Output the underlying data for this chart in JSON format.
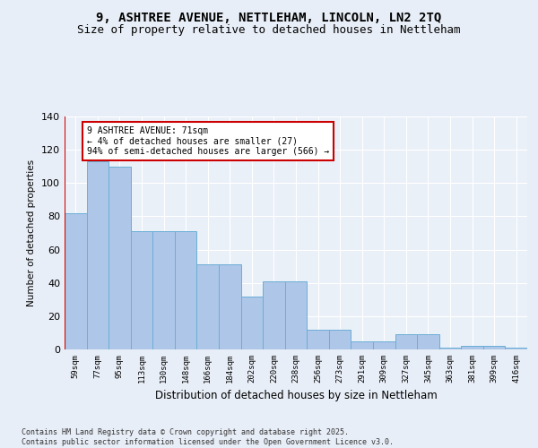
{
  "title1": "9, ASHTREE AVENUE, NETTLEHAM, LINCOLN, LN2 2TQ",
  "title2": "Size of property relative to detached houses in Nettleham",
  "xlabel": "Distribution of detached houses by size in Nettleham",
  "ylabel": "Number of detached properties",
  "categories": [
    "59sqm",
    "77sqm",
    "95sqm",
    "113sqm",
    "130sqm",
    "148sqm",
    "166sqm",
    "184sqm",
    "202sqm",
    "220sqm",
    "238sqm",
    "256sqm",
    "273sqm",
    "291sqm",
    "309sqm",
    "327sqm",
    "345sqm",
    "363sqm",
    "381sqm",
    "399sqm",
    "416sqm"
  ],
  "values": [
    82,
    113,
    110,
    71,
    71,
    71,
    51,
    51,
    32,
    41,
    41,
    12,
    12,
    5,
    5,
    9,
    9,
    1,
    2,
    2,
    1
  ],
  "bar_color": "#aec6e8",
  "bar_edge_color": "#6baed6",
  "annotation_text": "9 ASHTREE AVENUE: 71sqm\n← 4% of detached houses are smaller (27)\n94% of semi-detached houses are larger (566) →",
  "vline_color": "#cc0000",
  "vline_x_index": 0,
  "background_color": "#e8eef7",
  "plot_bg_color": "#eaf0f8",
  "grid_color": "#ffffff",
  "footer": "Contains HM Land Registry data © Crown copyright and database right 2025.\nContains public sector information licensed under the Open Government Licence v3.0.",
  "ylim": [
    0,
    140
  ],
  "yticks": [
    0,
    20,
    40,
    60,
    80,
    100,
    120,
    140
  ]
}
